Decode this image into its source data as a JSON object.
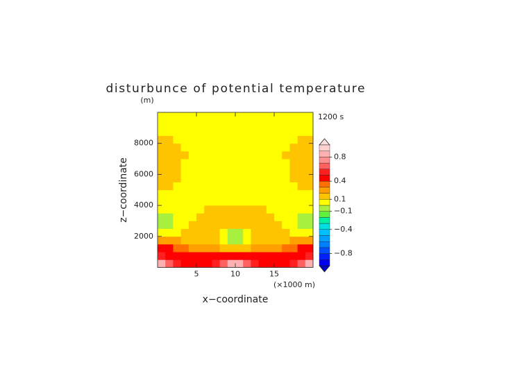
{
  "chart_data": {
    "type": "contour",
    "title": "disturbunce of potential temperature",
    "y_unit": "(m)",
    "annotation": "1200 s",
    "ylabel": "z−coordinate",
    "xlabel": "x−coordinate",
    "x_unit": "(×1000 m)",
    "xlim": [
      0,
      20
    ],
    "ylim": [
      0,
      10000
    ],
    "xticks": [
      5,
      10,
      15
    ],
    "yticks": [
      2000,
      4000,
      6000,
      8000
    ],
    "x": [
      0.5,
      1.5,
      2.5,
      3.5,
      4.5,
      5.5,
      6.5,
      7.5,
      8.5,
      9.5,
      10.5,
      11.5,
      12.5,
      13.5,
      14.5,
      15.5,
      16.5,
      17.5,
      18.5,
      19.5
    ],
    "y": [
      250,
      750,
      1250,
      1750,
      2250,
      2750,
      3250,
      3750,
      4250,
      4750,
      5250,
      5750,
      6250,
      6750,
      7250,
      7750,
      8250,
      8750,
      9250,
      9750
    ],
    "z": [
      [
        0.85,
        0.65,
        0.5,
        0.45,
        0.45,
        0.45,
        0.45,
        0.5,
        0.65,
        0.85,
        0.85,
        0.65,
        0.5,
        0.45,
        0.45,
        0.45,
        0.45,
        0.5,
        0.65,
        0.85
      ],
      [
        0.5,
        0.45,
        0.42,
        0.41,
        0.41,
        0.42,
        0.45,
        0.45,
        0.45,
        0.45,
        0.45,
        0.45,
        0.45,
        0.45,
        0.42,
        0.41,
        0.41,
        0.42,
        0.45,
        0.5
      ],
      [
        0.42,
        0.4,
        0.35,
        0.3,
        0.28,
        0.25,
        0.22,
        0.2,
        0.15,
        0.12,
        0.12,
        0.15,
        0.2,
        0.22,
        0.25,
        0.28,
        0.3,
        0.35,
        0.4,
        0.42
      ],
      [
        0.25,
        0.22,
        0.2,
        0.18,
        0.15,
        0.12,
        0.12,
        0.1,
        0.02,
        -0.05,
        -0.05,
        0.02,
        0.1,
        0.12,
        0.12,
        0.15,
        0.18,
        0.2,
        0.22,
        0.25
      ],
      [
        0.05,
        0.05,
        0.08,
        0.1,
        0.12,
        0.13,
        0.14,
        0.12,
        0.05,
        -0.05,
        -0.05,
        0.05,
        0.12,
        0.14,
        0.13,
        0.12,
        0.1,
        0.08,
        0.05,
        0.05
      ],
      [
        -0.03,
        -0.02,
        0.05,
        0.08,
        0.1,
        0.12,
        0.14,
        0.15,
        0.14,
        0.12,
        0.12,
        0.14,
        0.15,
        0.14,
        0.12,
        0.1,
        0.08,
        0.05,
        -0.02,
        -0.03
      ],
      [
        -0.03,
        -0.01,
        0.04,
        0.06,
        0.08,
        0.12,
        0.14,
        0.15,
        0.15,
        0.15,
        0.15,
        0.15,
        0.15,
        0.14,
        0.12,
        0.08,
        0.06,
        0.04,
        -0.01,
        -0.03
      ],
      [
        0.03,
        0.04,
        0.05,
        0.06,
        0.07,
        0.08,
        0.11,
        0.12,
        0.12,
        0.12,
        0.12,
        0.12,
        0.12,
        0.11,
        0.08,
        0.07,
        0.06,
        0.05,
        0.04,
        0.03
      ],
      [
        0.05,
        0.05,
        0.05,
        0.05,
        0.05,
        0.06,
        0.07,
        0.07,
        0.07,
        0.07,
        0.07,
        0.07,
        0.07,
        0.07,
        0.06,
        0.05,
        0.05,
        0.05,
        0.05,
        0.05
      ],
      [
        0.06,
        0.05,
        0.05,
        0.05,
        0.05,
        0.05,
        0.05,
        0.05,
        0.05,
        0.05,
        0.05,
        0.05,
        0.05,
        0.05,
        0.05,
        0.05,
        0.05,
        0.05,
        0.05,
        0.06
      ],
      [
        0.12,
        0.11,
        0.06,
        0.05,
        0.05,
        0.05,
        0.05,
        0.05,
        0.05,
        0.05,
        0.05,
        0.05,
        0.05,
        0.05,
        0.05,
        0.05,
        0.05,
        0.06,
        0.11,
        0.12
      ],
      [
        0.13,
        0.13,
        0.12,
        0.06,
        0.05,
        0.05,
        0.05,
        0.05,
        0.05,
        0.05,
        0.05,
        0.05,
        0.05,
        0.05,
        0.05,
        0.05,
        0.06,
        0.12,
        0.13,
        0.13
      ],
      [
        0.13,
        0.13,
        0.12,
        0.06,
        0.05,
        0.05,
        0.05,
        0.05,
        0.05,
        0.05,
        0.05,
        0.05,
        0.05,
        0.05,
        0.05,
        0.05,
        0.06,
        0.12,
        0.13,
        0.13
      ],
      [
        0.13,
        0.13,
        0.12,
        0.06,
        0.05,
        0.05,
        0.05,
        0.05,
        0.05,
        0.05,
        0.05,
        0.05,
        0.05,
        0.05,
        0.05,
        0.05,
        0.06,
        0.12,
        0.13,
        0.13
      ],
      [
        0.13,
        0.13,
        0.12,
        0.11,
        0.05,
        0.05,
        0.05,
        0.05,
        0.05,
        0.05,
        0.05,
        0.05,
        0.05,
        0.05,
        0.05,
        0.05,
        0.11,
        0.12,
        0.13,
        0.13
      ],
      [
        0.13,
        0.13,
        0.12,
        0.06,
        0.05,
        0.05,
        0.05,
        0.05,
        0.05,
        0.05,
        0.05,
        0.05,
        0.05,
        0.05,
        0.05,
        0.05,
        0.06,
        0.12,
        0.13,
        0.13
      ],
      [
        0.12,
        0.12,
        0.06,
        0.05,
        0.05,
        0.05,
        0.05,
        0.05,
        0.05,
        0.05,
        0.05,
        0.05,
        0.05,
        0.05,
        0.05,
        0.05,
        0.05,
        0.06,
        0.12,
        0.12
      ],
      [
        0.06,
        0.05,
        0.05,
        0.05,
        0.05,
        0.05,
        0.05,
        0.05,
        0.05,
        0.05,
        0.05,
        0.05,
        0.05,
        0.05,
        0.05,
        0.05,
        0.05,
        0.05,
        0.05,
        0.06
      ],
      [
        0.05,
        0.05,
        0.05,
        0.05,
        0.05,
        0.05,
        0.05,
        0.05,
        0.05,
        0.05,
        0.05,
        0.05,
        0.05,
        0.05,
        0.05,
        0.05,
        0.05,
        0.05,
        0.05,
        0.05
      ],
      [
        0.05,
        0.05,
        0.05,
        0.05,
        0.05,
        0.05,
        0.05,
        0.05,
        0.05,
        0.05,
        0.05,
        0.05,
        0.05,
        0.05,
        0.05,
        0.05,
        0.05,
        0.05,
        0.05,
        0.05
      ]
    ],
    "levels": [
      -1.0,
      -0.9,
      -0.8,
      -0.7,
      -0.6,
      -0.5,
      -0.4,
      -0.3,
      -0.2,
      -0.1,
      0.0,
      0.1,
      0.2,
      0.3,
      0.4,
      0.5,
      0.6,
      0.7,
      0.8,
      0.9,
      1.0
    ],
    "colors": [
      "#0000f0",
      "#0020ff",
      "#0050ff",
      "#0080ff",
      "#00a0ff",
      "#00c0ff",
      "#00e0e0",
      "#00f0a0",
      "#60f040",
      "#a8f040",
      "#ffff00",
      "#ffc400",
      "#ffa000",
      "#ff7000",
      "#ff0000",
      "#ff2020",
      "#ff6060",
      "#ff9090",
      "#ffb0b0",
      "#ffd0d0"
    ],
    "colorbar_ticks": [
      0.8,
      0.4,
      0.1,
      {
        "value": -0.1,
        "label": "−0.1"
      },
      {
        "value": -0.4,
        "label": "−0.4"
      },
      {
        "value": -0.8,
        "label": "−0.8"
      }
    ]
  }
}
